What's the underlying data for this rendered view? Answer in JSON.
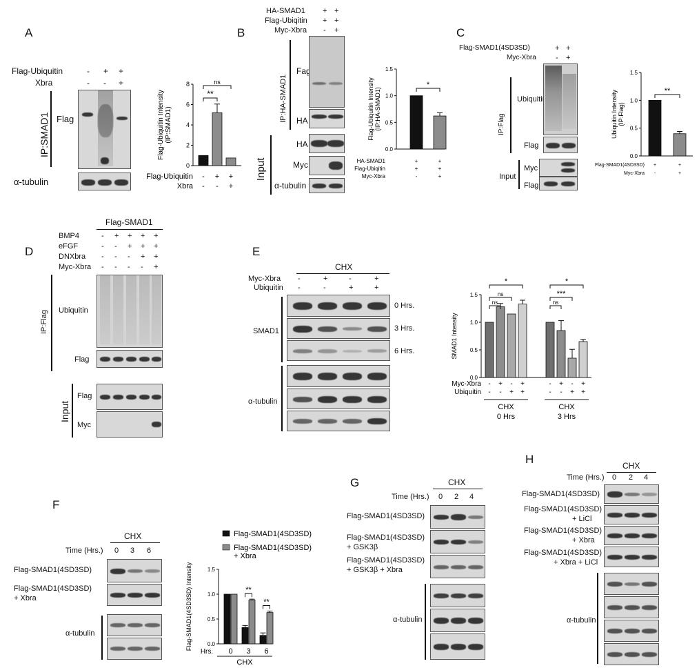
{
  "panels": {
    "A": {
      "label": "A",
      "row_flag_ubiquitin": "Flag-Ubiquitin",
      "row_xbra": "Xbra",
      "signs_row1": [
        "-",
        "+",
        "+"
      ],
      "signs_row2": [
        "-",
        "-",
        "+"
      ],
      "ip_label": "IP:SMAD1",
      "blot_flag": "Flag",
      "blot_tubulin": "α-tubulin"
    },
    "B": {
      "label": "B",
      "row1": "HA-SMAD1",
      "row2": "Flag-Ubiqitin",
      "row3": "Myc-Xbra",
      "signs_row1": [
        "+",
        "+"
      ],
      "signs_row2": [
        "+",
        "+"
      ],
      "signs_row3": [
        "-",
        "+"
      ],
      "ip_label": "IP:HA-SMAD1",
      "blot_fag": "Fag",
      "blot_ha1": "HA",
      "blot_ha2": "HA",
      "blot_myc": "Myc",
      "blot_tubulin": "α-tubulin",
      "input_label": "Input"
    },
    "C": {
      "label": "C",
      "row1": "Flag-SMAD1(4SD3SD)",
      "row2": "Myc-Xbra",
      "signs_row1": [
        "+",
        "+"
      ],
      "signs_row2": [
        "-",
        "+"
      ],
      "ip_label": "IP:Flag",
      "blot_ubiquitin": "Ubiquitin",
      "blot_flag1": "Flag",
      "blot_myc": "Myc",
      "blot_flag2": "Flag",
      "input_label": "Input"
    },
    "D": {
      "label": "D",
      "header": "Flag-SMAD1",
      "rows": [
        "BMP4",
        "eFGF",
        "DNXbra",
        "Myc-Xbra"
      ],
      "signs": [
        [
          "-",
          "+",
          "+",
          "+",
          "+"
        ],
        [
          "-",
          "-",
          "+",
          "+",
          "+"
        ],
        [
          "-",
          "-",
          "-",
          "+",
          "+"
        ],
        [
          "-",
          "-",
          "-",
          "-",
          "+"
        ]
      ],
      "ip_label": "IP:Flag",
      "blot_ubiquitin": "Ubiquitin",
      "blot_flag1": "Flag",
      "blot_flag2": "Flag",
      "blot_myc": "Myc",
      "input_label": "Input"
    },
    "E": {
      "label": "E",
      "header": "CHX",
      "row1": "Myc-Xbra",
      "row2": "Ubiquitin",
      "signs_row1": [
        "-",
        "+",
        "-",
        "+"
      ],
      "signs_row2": [
        "-",
        "-",
        "+",
        "+"
      ],
      "smad1_label": "SMAD1",
      "tubulin_label": "α-tubulin",
      "time_0": "0 Hrs.",
      "time_3": "3 Hrs.",
      "time_6": "6 Hrs."
    },
    "F": {
      "label": "F",
      "header": "CHX",
      "time_label": "Time (Hrs.)",
      "times": [
        "0",
        "3",
        "6"
      ],
      "row1": "Flag-SMAD1(4SD3SD)",
      "row2a": "Flag-SMAD1(4SD3SD)",
      "row2b": "+ Xbra",
      "tubulin_label": "α-tubulin"
    },
    "G": {
      "label": "G",
      "header": "CHX",
      "time_label": "Time (Hrs.)",
      "times": [
        "0",
        "2",
        "4"
      ],
      "row1": "Flag-SMAD1(4SD3SD)",
      "row2a": "Flag-SMAD1(4SD3SD)",
      "row2b": "+ GSK3β",
      "row3a": "Flag-SMAD1(4SD3SD)",
      "row3b": "+ GSK3β + Xbra",
      "tubulin_label": "α-tubulin"
    },
    "H": {
      "label": "H",
      "header": "CHX",
      "time_label": "Time (Hrs.)",
      "times": [
        "0",
        "2",
        "4"
      ],
      "row1": "Flag-SMAD1(4SD3SD)",
      "row2a": "Flag-SMAD1(4SD3SD)",
      "row2b": "+ LiCl",
      "row3a": "Flag-SMAD1(4SD3SD)",
      "row3b": "+ Xbra",
      "row4a": "Flag-SMAD1(4SD3SD)",
      "row4b": "+ Xbra + LiCl",
      "tubulin_label": "α-tubulin"
    }
  },
  "colors": {
    "black": "#111111",
    "gray": "#8c8c8c",
    "dark_gray": "#6e6e6e",
    "light_gray": "#cfcfcf"
  },
  "chart_data": [
    {
      "id": "chartA",
      "type": "bar",
      "ylabel": "Flag-Ubiquitin Intensity\n(IP:SMAD1)",
      "ylim": [
        0,
        8
      ],
      "yticks": [
        0,
        2,
        4,
        6,
        8
      ],
      "values": [
        1.0,
        5.2,
        0.75
      ],
      "errors": [
        0,
        0.85,
        0
      ],
      "colors": [
        "#111111",
        "#8c8c8c",
        "#8c8c8c"
      ],
      "xrows": [
        {
          "label": "Flag-Ubiquitin",
          "signs": [
            "-",
            "+",
            "+"
          ]
        },
        {
          "label": "Xbra",
          "signs": [
            "-",
            "-",
            "+"
          ]
        }
      ],
      "sig": [
        {
          "from": 0,
          "to": 1,
          "text": "**"
        },
        {
          "from": 0,
          "to": 2,
          "text": "ns"
        }
      ]
    },
    {
      "id": "chartB",
      "type": "bar",
      "ylabel": "Flag-Ubiquitin Intensity\n(IP:HA-SMAD1)",
      "ylim": [
        0,
        1.5
      ],
      "yticks": [
        0.0,
        0.5,
        1.0,
        1.5
      ],
      "values": [
        1.0,
        0.62
      ],
      "errors": [
        0,
        0.06
      ],
      "colors": [
        "#111111",
        "#8c8c8c"
      ],
      "xrows": [
        {
          "label": "HA-SMAD1",
          "signs": [
            "+",
            "+"
          ]
        },
        {
          "label": "Flag-Ubiqitin",
          "signs": [
            "+",
            "+"
          ]
        },
        {
          "label": "Myc-Xbra",
          "signs": [
            "-",
            "+"
          ]
        }
      ],
      "sig": [
        {
          "from": 0,
          "to": 1,
          "text": "*"
        }
      ]
    },
    {
      "id": "chartC",
      "type": "bar",
      "ylabel": "Ubiquitin Intensity\n(IP:Flag)",
      "ylim": [
        0,
        1.5
      ],
      "yticks": [
        0.0,
        0.5,
        1.0,
        1.5
      ],
      "values": [
        1.0,
        0.4
      ],
      "errors": [
        0,
        0.04
      ],
      "colors": [
        "#111111",
        "#8c8c8c"
      ],
      "xrows": [
        {
          "label": "Flag-SMAD1(4SD3SD)",
          "signs": [
            "+",
            "+"
          ]
        },
        {
          "label": "Myc-Xbra",
          "signs": [
            "-",
            "+"
          ]
        }
      ],
      "sig": [
        {
          "from": 0,
          "to": 1,
          "text": "**"
        }
      ]
    },
    {
      "id": "chartE",
      "type": "bar",
      "ylabel": "SMAD1 Intensity",
      "ylim": [
        0,
        1.5
      ],
      "yticks": [
        0.0,
        0.5,
        1.0,
        1.5
      ],
      "groups": [
        {
          "label": "CHX",
          "sublabel": "0 Hrs",
          "values": [
            1.0,
            1.28,
            1.15,
            1.33
          ],
          "errors": [
            0,
            0.06,
            0,
            0.07
          ]
        },
        {
          "label": "CHX",
          "sublabel": "3 Hrs",
          "values": [
            1.0,
            0.85,
            0.35,
            0.65
          ],
          "errors": [
            0,
            0.18,
            0.16,
            0.04
          ]
        }
      ],
      "colors": [
        "#6e6e6e",
        "#8c8c8c",
        "#a8a8a8",
        "#cfcfcf"
      ],
      "xrows": [
        {
          "label": "Myc-Xbra",
          "signs": [
            "-",
            "+",
            "-",
            "+"
          ]
        },
        {
          "label": "Ubiquitin",
          "signs": [
            "-",
            "-",
            "+",
            "+"
          ]
        }
      ],
      "sig": [
        {
          "group": 0,
          "from": 0,
          "to": 1,
          "text": "ns"
        },
        {
          "group": 0,
          "from": 0,
          "to": 2,
          "text": "ns"
        },
        {
          "group": 0,
          "from": 0,
          "to": 3,
          "text": "*"
        },
        {
          "group": 1,
          "from": 0,
          "to": 1,
          "text": "ns"
        },
        {
          "group": 1,
          "from": 0,
          "to": 2,
          "text": "***"
        },
        {
          "group": 1,
          "from": 0,
          "to": 3,
          "text": "*"
        }
      ]
    },
    {
      "id": "chartF",
      "type": "bar",
      "ylabel": "Flag-SMAD1(4SD3SD) Intensity",
      "ylim": [
        0,
        1.5
      ],
      "yticks": [
        0.0,
        0.5,
        1.0,
        1.5
      ],
      "categories": [
        "0",
        "3",
        "6"
      ],
      "xlabel_prefix": "Hrs.",
      "xlabel": "CHX",
      "series": [
        {
          "name": "Flag-SMAD1(4SD3SD)",
          "values": [
            1.0,
            0.33,
            0.17
          ],
          "errors": [
            0,
            0.04,
            0.05
          ],
          "color": "#111111"
        },
        {
          "name": "Flag-SMAD1(4SD3SD)\n+ Xbra",
          "values": [
            1.0,
            0.88,
            0.63
          ],
          "errors": [
            0,
            0.02,
            0.03
          ],
          "color": "#8c8c8c"
        }
      ],
      "sig": [
        {
          "cat": 1,
          "text": "**"
        },
        {
          "cat": 2,
          "text": "**"
        }
      ]
    }
  ]
}
